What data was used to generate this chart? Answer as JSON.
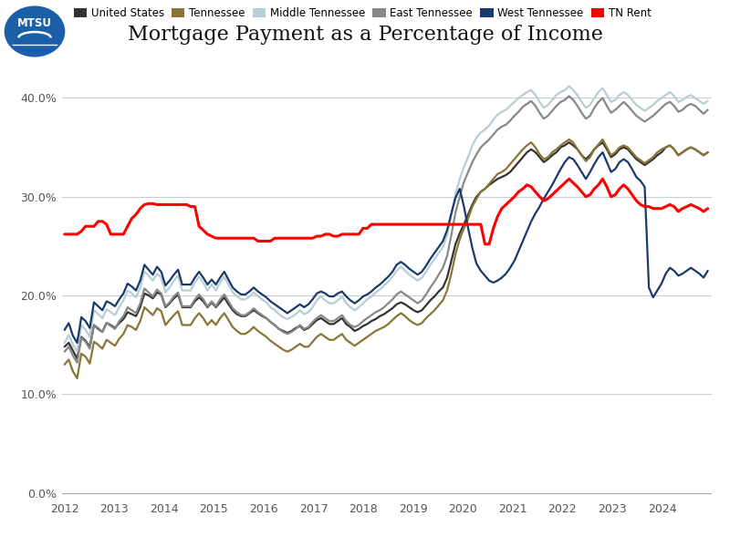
{
  "title": "Mortgage Payment as a Percentage of Income",
  "background_color": "#ffffff",
  "series": {
    "United States": {
      "color": "#333333",
      "linewidth": 1.6,
      "data": [
        0.148,
        0.152,
        0.144,
        0.136,
        0.158,
        0.154,
        0.148,
        0.17,
        0.166,
        0.163,
        0.172,
        0.17,
        0.167,
        0.172,
        0.176,
        0.183,
        0.181,
        0.179,
        0.188,
        0.202,
        0.2,
        0.197,
        0.203,
        0.201,
        0.188,
        0.192,
        0.197,
        0.201,
        0.188,
        0.188,
        0.188,
        0.194,
        0.198,
        0.194,
        0.188,
        0.193,
        0.188,
        0.193,
        0.198,
        0.191,
        0.185,
        0.181,
        0.179,
        0.179,
        0.182,
        0.185,
        0.182,
        0.179,
        0.177,
        0.173,
        0.17,
        0.166,
        0.164,
        0.162,
        0.164,
        0.167,
        0.169,
        0.165,
        0.167,
        0.171,
        0.175,
        0.177,
        0.174,
        0.171,
        0.171,
        0.174,
        0.177,
        0.171,
        0.168,
        0.164,
        0.166,
        0.169,
        0.171,
        0.174,
        0.176,
        0.179,
        0.181,
        0.184,
        0.187,
        0.191,
        0.193,
        0.191,
        0.188,
        0.185,
        0.183,
        0.185,
        0.19,
        0.195,
        0.199,
        0.204,
        0.208,
        0.218,
        0.235,
        0.252,
        0.263,
        0.272,
        0.282,
        0.292,
        0.3,
        0.305,
        0.308,
        0.312,
        0.315,
        0.318,
        0.32,
        0.322,
        0.325,
        0.33,
        0.335,
        0.34,
        0.345,
        0.348,
        0.345,
        0.34,
        0.335,
        0.338,
        0.342,
        0.345,
        0.35,
        0.352,
        0.355,
        0.352,
        0.348,
        0.342,
        0.338,
        0.342,
        0.348,
        0.352,
        0.355,
        0.348,
        0.34,
        0.343,
        0.348,
        0.35,
        0.348,
        0.343,
        0.338,
        0.335,
        0.332,
        0.335,
        0.338,
        0.342,
        0.345,
        0.35,
        0.352,
        0.348,
        0.342,
        0.345,
        0.348,
        0.35,
        0.348,
        0.345,
        0.342,
        0.345
      ]
    },
    "Tennessee": {
      "color": "#8B7536",
      "linewidth": 1.6,
      "data": [
        0.13,
        0.135,
        0.123,
        0.116,
        0.141,
        0.138,
        0.131,
        0.153,
        0.15,
        0.146,
        0.155,
        0.152,
        0.149,
        0.156,
        0.161,
        0.17,
        0.168,
        0.165,
        0.174,
        0.188,
        0.184,
        0.18,
        0.187,
        0.184,
        0.17,
        0.175,
        0.18,
        0.184,
        0.17,
        0.17,
        0.17,
        0.177,
        0.182,
        0.177,
        0.17,
        0.175,
        0.17,
        0.177,
        0.182,
        0.175,
        0.168,
        0.164,
        0.161,
        0.161,
        0.164,
        0.168,
        0.164,
        0.161,
        0.158,
        0.154,
        0.151,
        0.148,
        0.145,
        0.143,
        0.145,
        0.148,
        0.151,
        0.148,
        0.148,
        0.153,
        0.158,
        0.161,
        0.158,
        0.155,
        0.155,
        0.158,
        0.161,
        0.155,
        0.152,
        0.149,
        0.152,
        0.155,
        0.158,
        0.161,
        0.164,
        0.166,
        0.168,
        0.171,
        0.175,
        0.179,
        0.182,
        0.179,
        0.175,
        0.172,
        0.17,
        0.172,
        0.177,
        0.181,
        0.185,
        0.19,
        0.195,
        0.205,
        0.222,
        0.242,
        0.257,
        0.268,
        0.278,
        0.29,
        0.298,
        0.305,
        0.308,
        0.313,
        0.318,
        0.323,
        0.325,
        0.328,
        0.333,
        0.338,
        0.343,
        0.348,
        0.352,
        0.355,
        0.35,
        0.343,
        0.338,
        0.34,
        0.345,
        0.348,
        0.352,
        0.355,
        0.358,
        0.355,
        0.348,
        0.342,
        0.336,
        0.34,
        0.348,
        0.353,
        0.358,
        0.35,
        0.342,
        0.345,
        0.35,
        0.352,
        0.35,
        0.345,
        0.34,
        0.337,
        0.334,
        0.337,
        0.34,
        0.345,
        0.348,
        0.35,
        0.352,
        0.348,
        0.342,
        0.345,
        0.348,
        0.35,
        0.348,
        0.345,
        0.342,
        0.345
      ]
    },
    "Middle Tennessee": {
      "color": "#b8cdd6",
      "linewidth": 1.6,
      "data": [
        0.152,
        0.16,
        0.15,
        0.143,
        0.17,
        0.165,
        0.158,
        0.185,
        0.181,
        0.177,
        0.186,
        0.183,
        0.18,
        0.188,
        0.195,
        0.205,
        0.202,
        0.198,
        0.208,
        0.224,
        0.22,
        0.215,
        0.222,
        0.218,
        0.203,
        0.208,
        0.215,
        0.22,
        0.205,
        0.205,
        0.205,
        0.213,
        0.219,
        0.213,
        0.205,
        0.211,
        0.205,
        0.213,
        0.219,
        0.211,
        0.203,
        0.199,
        0.196,
        0.196,
        0.199,
        0.203,
        0.199,
        0.196,
        0.193,
        0.188,
        0.185,
        0.181,
        0.178,
        0.176,
        0.178,
        0.181,
        0.185,
        0.181,
        0.183,
        0.188,
        0.195,
        0.199,
        0.195,
        0.192,
        0.192,
        0.195,
        0.199,
        0.192,
        0.188,
        0.185,
        0.188,
        0.192,
        0.196,
        0.199,
        0.203,
        0.206,
        0.21,
        0.214,
        0.219,
        0.225,
        0.229,
        0.225,
        0.221,
        0.218,
        0.215,
        0.218,
        0.224,
        0.231,
        0.237,
        0.243,
        0.249,
        0.261,
        0.282,
        0.303,
        0.318,
        0.33,
        0.34,
        0.352,
        0.36,
        0.365,
        0.368,
        0.372,
        0.378,
        0.383,
        0.386,
        0.388,
        0.392,
        0.396,
        0.4,
        0.403,
        0.406,
        0.408,
        0.403,
        0.396,
        0.39,
        0.393,
        0.398,
        0.403,
        0.406,
        0.408,
        0.412,
        0.408,
        0.403,
        0.396,
        0.39,
        0.393,
        0.4,
        0.406,
        0.41,
        0.403,
        0.396,
        0.398,
        0.403,
        0.406,
        0.403,
        0.398,
        0.393,
        0.39,
        0.387,
        0.39,
        0.393,
        0.397,
        0.4,
        0.403,
        0.406,
        0.402,
        0.396,
        0.398,
        0.401,
        0.403,
        0.4,
        0.397,
        0.394,
        0.397
      ]
    },
    "East Tennessee": {
      "color": "#888888",
      "linewidth": 1.6,
      "data": [
        0.143,
        0.148,
        0.139,
        0.132,
        0.157,
        0.153,
        0.146,
        0.17,
        0.167,
        0.163,
        0.172,
        0.169,
        0.166,
        0.174,
        0.179,
        0.188,
        0.185,
        0.182,
        0.192,
        0.207,
        0.203,
        0.199,
        0.206,
        0.202,
        0.189,
        0.193,
        0.199,
        0.203,
        0.189,
        0.189,
        0.189,
        0.196,
        0.201,
        0.196,
        0.189,
        0.194,
        0.189,
        0.196,
        0.201,
        0.194,
        0.187,
        0.183,
        0.18,
        0.18,
        0.183,
        0.187,
        0.183,
        0.18,
        0.177,
        0.173,
        0.17,
        0.166,
        0.163,
        0.161,
        0.163,
        0.166,
        0.17,
        0.166,
        0.168,
        0.173,
        0.177,
        0.18,
        0.177,
        0.174,
        0.174,
        0.177,
        0.18,
        0.174,
        0.17,
        0.168,
        0.17,
        0.174,
        0.177,
        0.18,
        0.183,
        0.185,
        0.188,
        0.192,
        0.196,
        0.201,
        0.204,
        0.201,
        0.198,
        0.195,
        0.192,
        0.195,
        0.201,
        0.208,
        0.214,
        0.221,
        0.228,
        0.24,
        0.261,
        0.284,
        0.3,
        0.315,
        0.325,
        0.335,
        0.343,
        0.35,
        0.354,
        0.358,
        0.363,
        0.368,
        0.371,
        0.373,
        0.377,
        0.382,
        0.386,
        0.391,
        0.394,
        0.397,
        0.392,
        0.385,
        0.379,
        0.382,
        0.387,
        0.392,
        0.396,
        0.398,
        0.402,
        0.398,
        0.392,
        0.385,
        0.379,
        0.382,
        0.39,
        0.396,
        0.4,
        0.392,
        0.385,
        0.388,
        0.392,
        0.396,
        0.392,
        0.387,
        0.382,
        0.379,
        0.376,
        0.379,
        0.382,
        0.386,
        0.39,
        0.394,
        0.396,
        0.392,
        0.386,
        0.388,
        0.392,
        0.394,
        0.392,
        0.388,
        0.384,
        0.388
      ]
    },
    "West Tennessee": {
      "color": "#1a3a6b",
      "linewidth": 1.6,
      "data": [
        0.165,
        0.172,
        0.159,
        0.152,
        0.178,
        0.174,
        0.167,
        0.193,
        0.189,
        0.185,
        0.194,
        0.192,
        0.189,
        0.196,
        0.202,
        0.212,
        0.209,
        0.205,
        0.215,
        0.231,
        0.226,
        0.221,
        0.229,
        0.224,
        0.21,
        0.215,
        0.221,
        0.226,
        0.211,
        0.211,
        0.211,
        0.218,
        0.224,
        0.218,
        0.211,
        0.216,
        0.211,
        0.218,
        0.224,
        0.216,
        0.208,
        0.204,
        0.201,
        0.201,
        0.204,
        0.208,
        0.204,
        0.201,
        0.198,
        0.194,
        0.191,
        0.188,
        0.185,
        0.182,
        0.185,
        0.188,
        0.191,
        0.188,
        0.191,
        0.196,
        0.202,
        0.204,
        0.202,
        0.199,
        0.199,
        0.202,
        0.204,
        0.199,
        0.195,
        0.192,
        0.195,
        0.199,
        0.201,
        0.204,
        0.208,
        0.211,
        0.215,
        0.219,
        0.224,
        0.231,
        0.234,
        0.231,
        0.227,
        0.224,
        0.221,
        0.224,
        0.23,
        0.237,
        0.243,
        0.249,
        0.255,
        0.266,
        0.283,
        0.299,
        0.308,
        0.29,
        0.268,
        0.248,
        0.232,
        0.225,
        0.22,
        0.215,
        0.213,
        0.215,
        0.218,
        0.222,
        0.228,
        0.235,
        0.245,
        0.255,
        0.265,
        0.275,
        0.283,
        0.29,
        0.298,
        0.305,
        0.312,
        0.32,
        0.328,
        0.335,
        0.34,
        0.338,
        0.332,
        0.325,
        0.318,
        0.325,
        0.333,
        0.34,
        0.345,
        0.335,
        0.325,
        0.328,
        0.335,
        0.338,
        0.335,
        0.328,
        0.32,
        0.316,
        0.31,
        0.208,
        0.198,
        0.205,
        0.212,
        0.222,
        0.228,
        0.225,
        0.22,
        0.222,
        0.225,
        0.228,
        0.225,
        0.222,
        0.218,
        0.225
      ]
    },
    "TN Rent": {
      "color": "#ff0000",
      "linewidth": 2.2,
      "data": [
        0.262,
        0.262,
        0.262,
        0.262,
        0.265,
        0.27,
        0.27,
        0.27,
        0.275,
        0.275,
        0.272,
        0.262,
        0.262,
        0.262,
        0.262,
        0.27,
        0.278,
        0.282,
        0.288,
        0.292,
        0.293,
        0.293,
        0.292,
        0.292,
        0.292,
        0.292,
        0.292,
        0.292,
        0.292,
        0.292,
        0.29,
        0.29,
        0.27,
        0.266,
        0.262,
        0.26,
        0.258,
        0.258,
        0.258,
        0.258,
        0.258,
        0.258,
        0.258,
        0.258,
        0.258,
        0.258,
        0.255,
        0.255,
        0.255,
        0.255,
        0.258,
        0.258,
        0.258,
        0.258,
        0.258,
        0.258,
        0.258,
        0.258,
        0.258,
        0.258,
        0.26,
        0.26,
        0.262,
        0.262,
        0.26,
        0.26,
        0.262,
        0.262,
        0.262,
        0.262,
        0.262,
        0.268,
        0.268,
        0.272,
        0.272,
        0.272,
        0.272,
        0.272,
        0.272,
        0.272,
        0.272,
        0.272,
        0.272,
        0.272,
        0.272,
        0.272,
        0.272,
        0.272,
        0.272,
        0.272,
        0.272,
        0.272,
        0.272,
        0.272,
        0.272,
        0.272,
        0.272,
        0.272,
        0.272,
        0.272,
        0.252,
        0.252,
        0.268,
        0.28,
        0.288,
        0.292,
        0.296,
        0.3,
        0.305,
        0.308,
        0.312,
        0.31,
        0.305,
        0.3,
        0.296,
        0.298,
        0.302,
        0.306,
        0.31,
        0.314,
        0.318,
        0.314,
        0.31,
        0.305,
        0.3,
        0.302,
        0.308,
        0.312,
        0.318,
        0.31,
        0.3,
        0.302,
        0.308,
        0.312,
        0.308,
        0.302,
        0.296,
        0.292,
        0.29,
        0.29,
        0.288,
        0.288,
        0.288,
        0.29,
        0.292,
        0.29,
        0.285,
        0.288,
        0.29,
        0.292,
        0.29,
        0.288,
        0.285,
        0.288
      ]
    }
  },
  "x_start_year": 2012.0,
  "x_end_year": 2024.92,
  "n_points": 154,
  "ylim": [
    -0.005,
    0.43
  ],
  "yticks": [
    0.0,
    0.1,
    0.2,
    0.3,
    0.4
  ],
  "ytick_labels": [
    "0.0%",
    "10.0%",
    "20.0%",
    "30.0%",
    "40.0%"
  ],
  "xtick_years": [
    2012,
    2013,
    2014,
    2015,
    2016,
    2017,
    2018,
    2019,
    2020,
    2021,
    2022,
    2023,
    2024
  ],
  "legend_order": [
    "United States",
    "Tennessee",
    "Middle Tennessee",
    "East Tennessee",
    "West Tennessee",
    "TN Rent"
  ],
  "logo_text": "MTSU",
  "logo_bg": "#1a5fa8"
}
